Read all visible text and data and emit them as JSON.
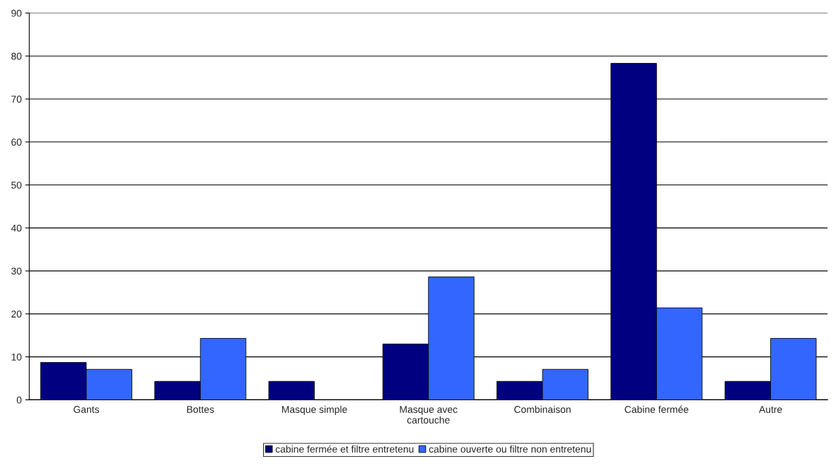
{
  "chart_data": {
    "type": "bar",
    "categories": [
      "Gants",
      "Bottes",
      "Masque simple",
      "Masque avec\ncartouche",
      "Combinaison",
      "Cabine fermée",
      "Autre"
    ],
    "series": [
      {
        "name": "cabine fermée et filtre entretenu",
        "color": "#000080",
        "values": [
          8.7,
          4.3,
          4.3,
          13.0,
          4.3,
          78.3,
          4.3
        ]
      },
      {
        "name": "cabine ouverte ou filtre non entretenu",
        "color": "#3366ff",
        "values": [
          7.1,
          14.3,
          0,
          28.6,
          7.1,
          21.4,
          14.3
        ]
      }
    ],
    "ylim": [
      0,
      90
    ],
    "yticks": [
      0,
      10,
      20,
      30,
      40,
      50,
      60,
      70,
      80,
      90
    ],
    "grid": "y",
    "legend": "bottom"
  }
}
